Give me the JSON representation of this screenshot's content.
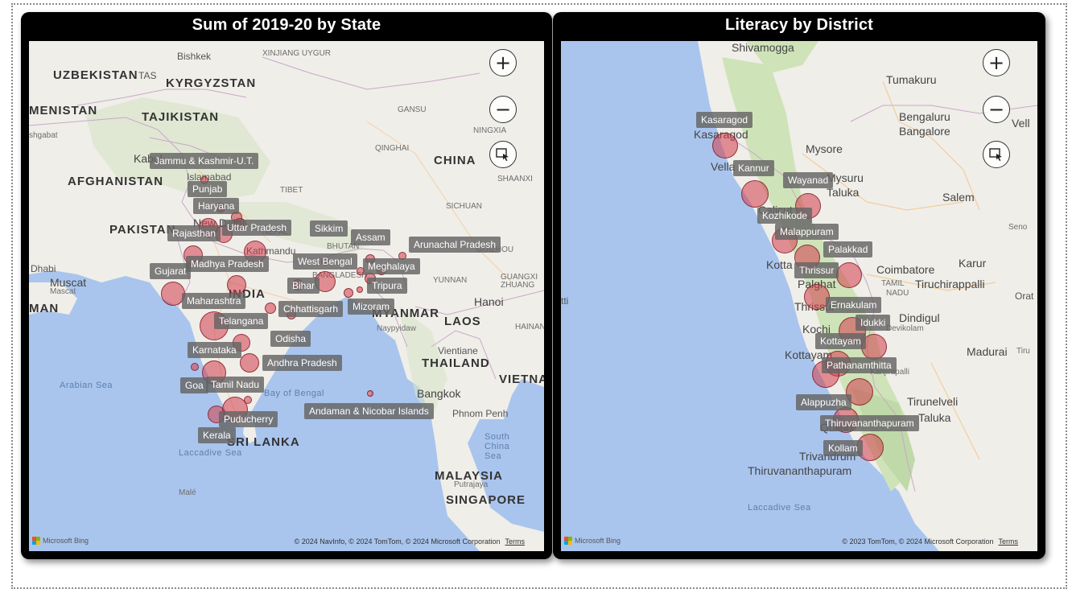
{
  "left_map": {
    "title": "Sum of 2019-20 by State",
    "places": [
      "Bishkek",
      "XINJIANG UYGUR",
      "UZBEKISTAN",
      "TAS",
      "KYRGYZSTAN",
      "MENISTAN",
      "TAJIKISTAN",
      "shgabat",
      "GANSU",
      "NINGXIA",
      "QINGHAI",
      "CHINA",
      "Kabul",
      "SHAANXI",
      "AFGHANISTAN",
      "Islamabad",
      "TIBET",
      "SICHUAN",
      "PAKISTAN",
      "New Delhi",
      "NEPAL",
      "Kathmandu",
      "BHUTAN",
      "GUIZHOU",
      "Dhabi",
      "Muscat",
      "Mascat",
      "MAN",
      "INDIA",
      "BANGLADESH",
      "YUNNAN",
      "GUANGXI",
      "ZHUANG",
      "Hanoi",
      "MYANMAR",
      "LAOS",
      "Naypyidaw",
      "HAINAN",
      "Vientiane",
      "THAILAND",
      "Arabian Sea",
      "Bay of Bengal",
      "VIETNA",
      "Bangkok",
      "Phnom Penh",
      "SRI LANKA",
      "Laccadive Sea",
      "South",
      "China",
      "Sea",
      "Malé",
      "MALAYSIA",
      "Putrajaya",
      "SINGAPORE"
    ],
    "states": [
      "Jammu & Kashmir-U.T.",
      "Punjab",
      "Haryana",
      "Rajasthan",
      "Uttar Pradesh",
      "Sikkim",
      "Assam",
      "Arunachal Pradesh",
      "Madhya Pradesh",
      "West Bengal",
      "Meghalaya",
      "Gujarat",
      "Bihar",
      "Tripura",
      "Maharashtra",
      "Chhattisgarh",
      "Mizoram",
      "Telangana",
      "Odisha",
      "Karnataka",
      "Andhra Pradesh",
      "Goa",
      "Tamil Nadu",
      "Puducherry",
      "Kerala",
      "Andaman & Nicobar Islands"
    ],
    "attribution": "© 2024 NavInfo, © 2024 TomTom, © 2024 Microsoft Corporation",
    "terms": "Terms",
    "brand": "Microsoft Bing"
  },
  "right_map": {
    "title": "Literacy by District",
    "places": [
      "Shivamogga",
      "Tumakuru",
      "Bengaluru",
      "Bangalore",
      "Vell",
      "Mysore",
      "Mysuru",
      "Taluka",
      "Salem",
      "Seno",
      "Coimbatore",
      "Karur",
      "TAMIL",
      "NADU",
      "Tiruchirappalli",
      "Orat",
      "tti",
      "Dindigul",
      "Devikolam",
      "Madurai",
      "Tiru",
      "Kanjirapalli",
      "Tirunelveli",
      "Taluka",
      "Quilon",
      "Trivandrum",
      "Thiruvananthapuram",
      "Laccadive Sea",
      "Vella",
      "Kasaragod",
      "Kochi",
      "Kottayam",
      "Palghat",
      "Thrissur",
      "Kotta",
      "Calicut"
    ],
    "districts": [
      "Kasaragod",
      "Kannur",
      "Wayanad",
      "Kozhikode",
      "Malappuram",
      "Palakkad",
      "Thrissur",
      "Ernakulam",
      "Idukki",
      "Kottayam",
      "Pathanamthitta",
      "Alappuzha",
      "Thiruvananthapuram",
      "Kollam"
    ],
    "attribution": "© 2023 TomTom, © 2024 Microsoft Corporation",
    "terms": "Terms",
    "brand": "Microsoft Bing"
  },
  "controls": {
    "zoom_in": "+",
    "zoom_out": "−"
  },
  "colors": {
    "bubble": "#d23c4b",
    "land": "#f0eee9",
    "water": "#a9c5ee",
    "green": "#cfe3b9"
  }
}
